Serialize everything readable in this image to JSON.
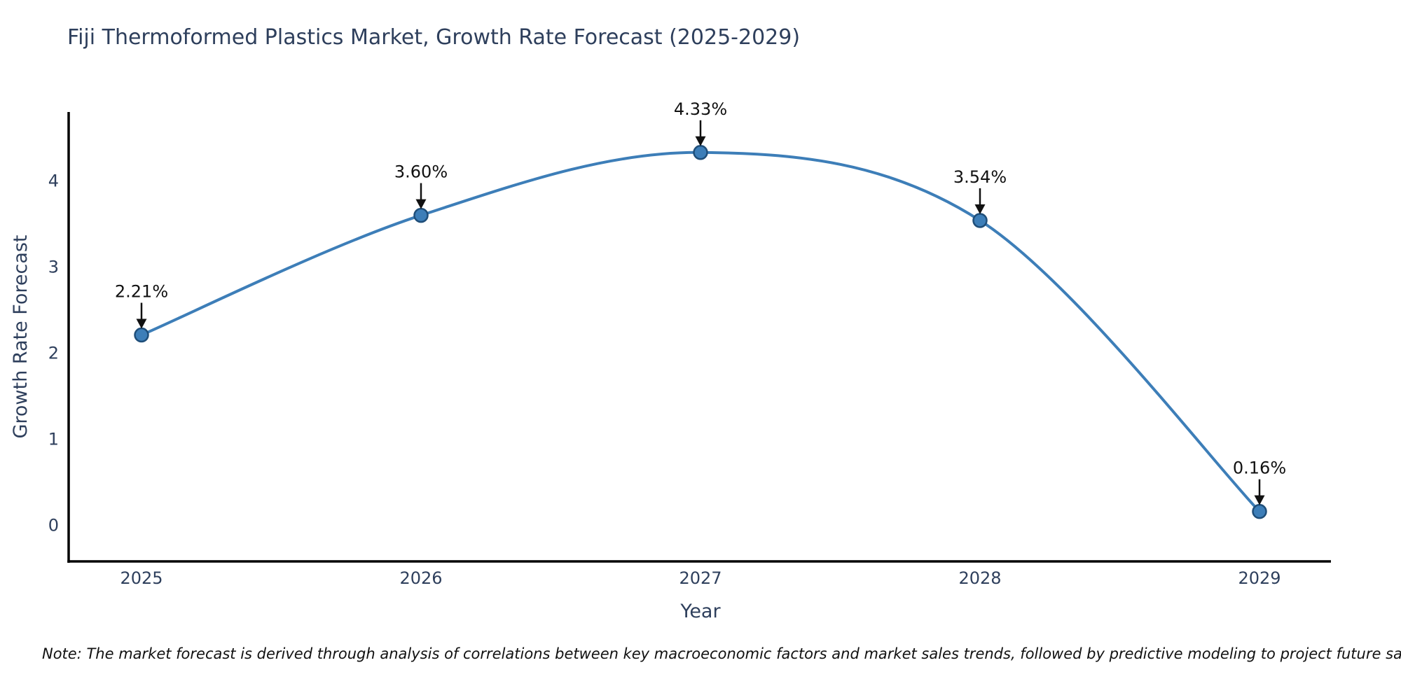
{
  "title": "Fiji Thermoformed Plastics Market, Growth Rate Forecast (2025-2029)",
  "note": "Note: The market forecast is derived through analysis of correlations between key macroeconomic factors and market sales trends, followed by predictive modeling to project future sales.",
  "chart_data": {
    "type": "line",
    "title": "Fiji Thermoformed Plastics Market, Growth Rate Forecast (2025-2029)",
    "categories": [
      "2025",
      "2026",
      "2027",
      "2028",
      "2029"
    ],
    "values": [
      2.21,
      3.6,
      4.33,
      3.54,
      0.16
    ],
    "point_labels": [
      "2.21%",
      "3.60%",
      "4.33%",
      "3.54%",
      "0.16%"
    ],
    "xlabel": "Year",
    "ylabel": "Growth Rate Forecast",
    "yticks": [
      0,
      1,
      2,
      3,
      4
    ],
    "ylim": [
      -0.42,
      4.8
    ],
    "grid": false,
    "legend": "none",
    "line_color": "#3d7eb8",
    "marker_fill_color": "#3d7eb8",
    "marker_edge_color": "#1f4e79",
    "axis_color": "#000000",
    "tick_text_color": "#2e3f5c",
    "axis_label_color": "#2e3f5c",
    "annotation_color": "#111111"
  }
}
